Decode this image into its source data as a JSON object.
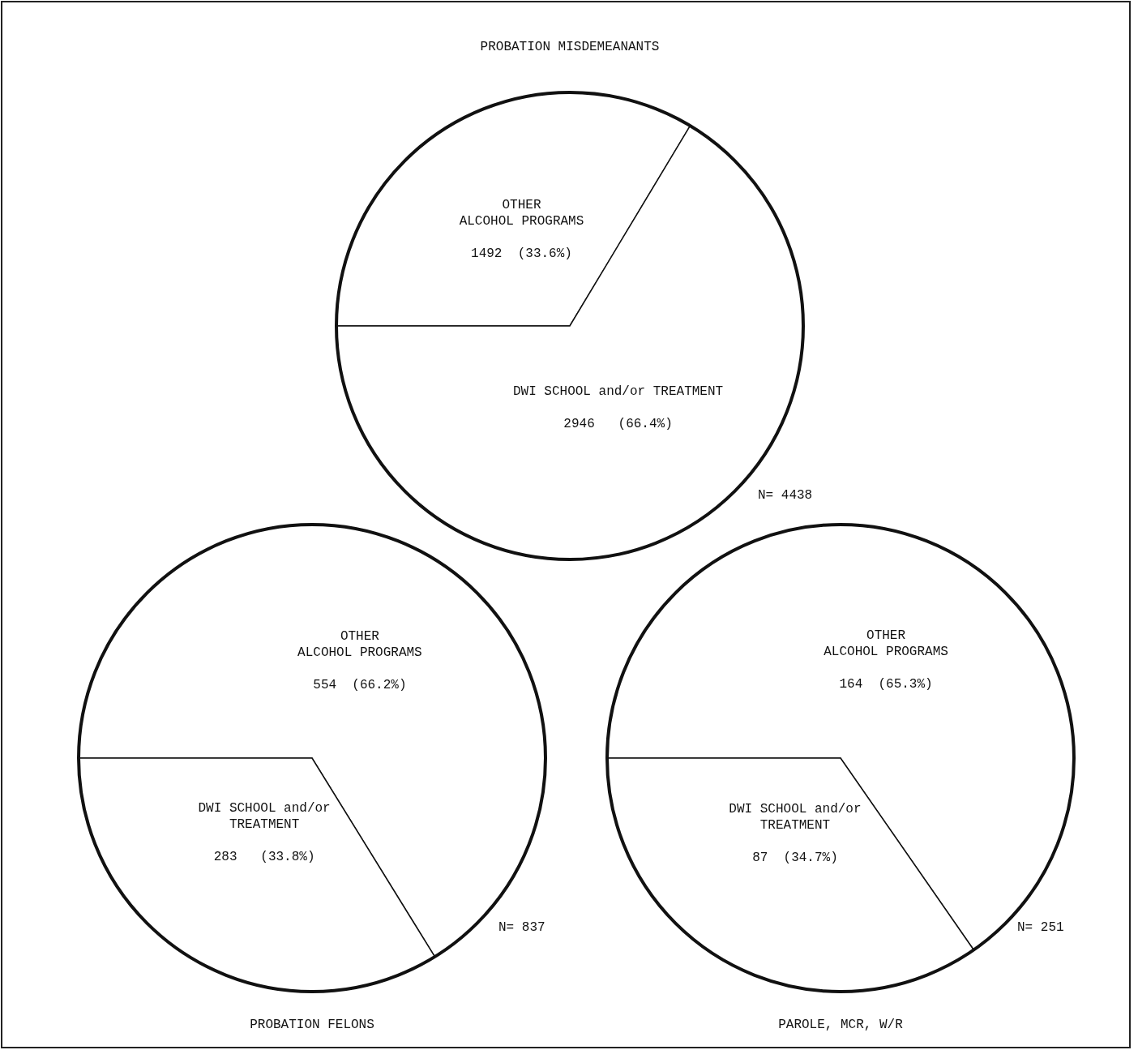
{
  "chart_data": [
    {
      "type": "pie",
      "title": "PROBATION MISDEMEANANTS",
      "categories": [
        "OTHER\nALCOHOL PROGRAMS",
        "DWI SCHOOL and/or TREATMENT"
      ],
      "values": [
        1492,
        2946
      ],
      "value_labels": [
        "1492  (33.6%)",
        "2946   (66.4%)"
      ],
      "colors": [
        "#ffffff",
        "#ffffff"
      ],
      "annotations": [
        "N= 4438"
      ]
    },
    {
      "type": "pie",
      "title": "PROBATION FELONS",
      "categories": [
        "OTHER\nALCOHOL PROGRAMS",
        "DWI SCHOOL and/or\nTREATMENT"
      ],
      "values": [
        554,
        283
      ],
      "value_labels": [
        "554  (66.2%)",
        "283   (33.8%)"
      ],
      "colors": [
        "#ffffff",
        "#ffffff"
      ],
      "annotations": [
        "N= 837"
      ]
    },
    {
      "type": "pie",
      "title": "PAROLE, MCR, W/R",
      "categories": [
        "OTHER\nALCOHOL PROGRAMS",
        "DWI SCHOOL and/or\nTREATMENT"
      ],
      "values": [
        164,
        87
      ],
      "value_labels": [
        "164  (65.3%)",
        "87  (34.7%)"
      ],
      "colors": [
        "#ffffff",
        "#ffffff"
      ],
      "annotations": [
        "N= 251"
      ]
    }
  ]
}
